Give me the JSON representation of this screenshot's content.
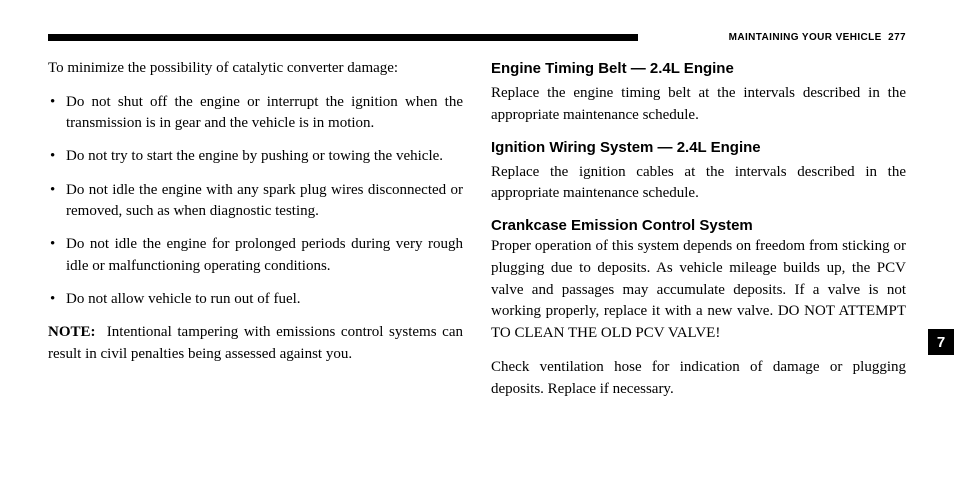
{
  "header": {
    "section": "MAINTAINING YOUR VEHICLE",
    "page_number": "277"
  },
  "side_tab": "7",
  "left": {
    "intro": "To minimize the possibility of catalytic converter damage:",
    "bullets": [
      "Do not shut off the engine or interrupt the ignition when the transmission is in gear and the vehicle is in motion.",
      "Do not try to start the engine by pushing or towing the vehicle.",
      "Do not idle the engine with any spark plug wires disconnected or removed, such as when diagnostic testing.",
      "Do not idle the engine for prolonged periods during very rough idle or malfunctioning operating conditions.",
      "Do not allow vehicle to run out of fuel."
    ],
    "note_label": "NOTE:",
    "note_text": "Intentional tampering with emissions control systems can result in civil penalties being assessed against you."
  },
  "right": {
    "sections": [
      {
        "heading": "Engine Timing Belt — 2.4L Engine",
        "body": "Replace the engine timing belt at the intervals described in the appropriate maintenance schedule."
      },
      {
        "heading": "Ignition Wiring System — 2.4L Engine",
        "body": "Replace the ignition cables at the intervals described in the appropriate maintenance schedule."
      },
      {
        "heading": "Crankcase Emission Control System",
        "body": "Proper operation of this system depends on freedom from sticking or plugging due to deposits. As vehicle mileage builds up, the PCV valve and passages may accumulate deposits. If a valve is not working properly, replace it with a new valve. DO NOT ATTEMPT TO CLEAN THE OLD PCV VALVE!",
        "tight": true
      }
    ],
    "closing": "Check ventilation hose for indication of damage or plugging deposits. Replace if necessary."
  },
  "style": {
    "body_font_size_pt": 11,
    "heading_font_size_pt": 11,
    "header_font_size_pt": 7,
    "bg": "#ffffff",
    "text": "#000000",
    "bar_color": "#000000",
    "tab_bg": "#000000",
    "tab_fg": "#ffffff"
  }
}
